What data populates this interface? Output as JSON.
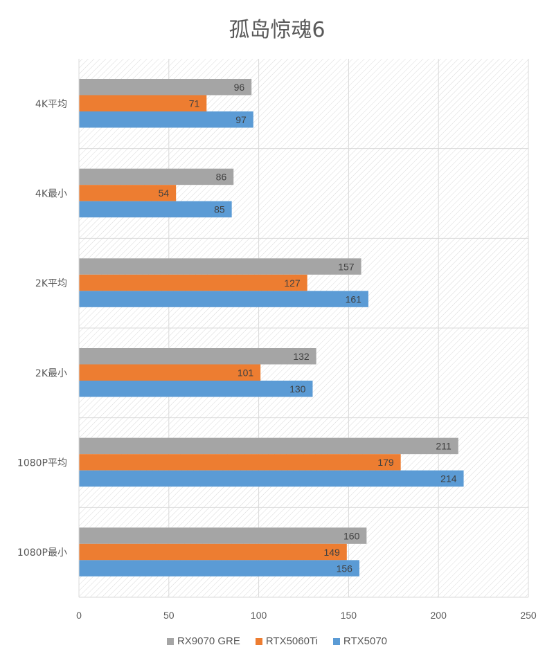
{
  "chart_data": {
    "type": "bar",
    "orientation": "horizontal",
    "title": "孤岛惊魂6",
    "categories": [
      "4K平均",
      "4K最小",
      "2K平均",
      "2K最小",
      "1080P平均",
      "1080P最小"
    ],
    "series": [
      {
        "name": "RX9070 GRE",
        "color": "#a5a5a5",
        "values": [
          96,
          86,
          157,
          132,
          211,
          160
        ]
      },
      {
        "name": "RTX5060Ti",
        "color": "#ed7d31",
        "values": [
          71,
          54,
          127,
          101,
          179,
          149
        ]
      },
      {
        "name": "RTX5070",
        "color": "#5b9bd5",
        "values": [
          97,
          85,
          161,
          130,
          214,
          156
        ]
      }
    ],
    "xlim": [
      0,
      250
    ],
    "xticks": [
      0,
      50,
      100,
      150,
      200,
      250
    ],
    "grid": true,
    "data_labels": true,
    "legend": "bottom",
    "background": "diagonal-hatch"
  }
}
